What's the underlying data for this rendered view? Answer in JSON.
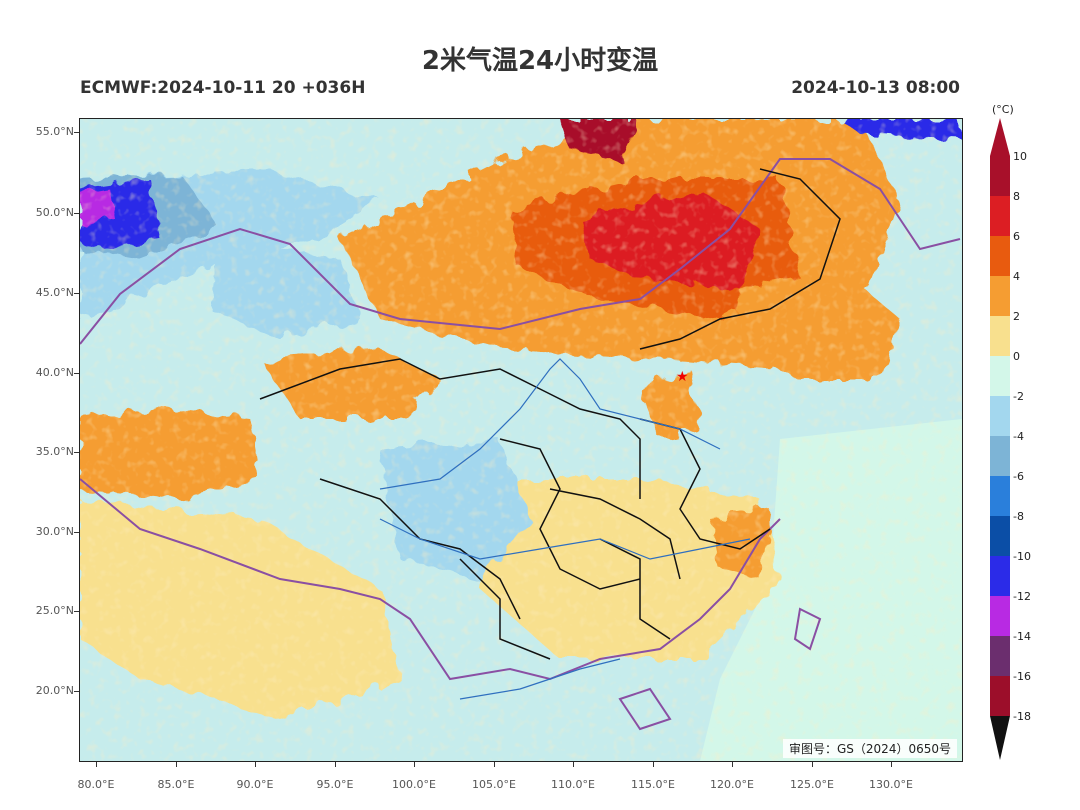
{
  "title": "2米气温24小时变温",
  "subtitle_left": "ECMWF:2024-10-11 20 +036H",
  "subtitle_right": "2024-10-13 08:00",
  "approval_number": "审图号：GS（2024）0650号",
  "colorbar": {
    "unit": "(°C)",
    "labels": [
      "10",
      "8",
      "6",
      "4",
      "2",
      "0",
      "-2",
      "-4",
      "-6",
      "-8",
      "-10",
      "-12",
      "-14",
      "-16",
      "-18"
    ],
    "colors": [
      "#a8102a",
      "#dc1e23",
      "#e85b0f",
      "#f59d32",
      "#f8e08e",
      "#d3f7e9",
      "#a3d7ee",
      "#7db4d6",
      "#2a7fdb",
      "#0b4ea6",
      "#2b2be8",
      "#b82ae3",
      "#6b2e6e",
      "#9c0e2a"
    ],
    "top_cap_color": "#a8102a",
    "bottom_cap_color": "#111111"
  },
  "axes": {
    "lat_labels": [
      "55.0°N",
      "50.0°N",
      "45.0°N",
      "40.0°N",
      "35.0°N",
      "30.0°N",
      "25.0°N",
      "20.0°N"
    ],
    "lon_labels": [
      "80.0°E",
      "85.0°E",
      "90.0°E",
      "95.0°E",
      "100.0°E",
      "105.0°E",
      "110.0°E",
      "115.0°E",
      "120.0°E",
      "125.0°E",
      "130.0°E"
    ]
  },
  "map": {
    "capital_marker": "star-icon",
    "regions": [
      {
        "name": "mongolia-warm",
        "color": "#f59d32"
      },
      {
        "name": "mongolia-core",
        "color": "#dc1e23"
      },
      {
        "name": "northwest-cold",
        "color": "#2b2be8"
      },
      {
        "name": "south-china",
        "color": "#f8e08e"
      },
      {
        "name": "ocean",
        "color": "#d3f7e9"
      }
    ]
  }
}
